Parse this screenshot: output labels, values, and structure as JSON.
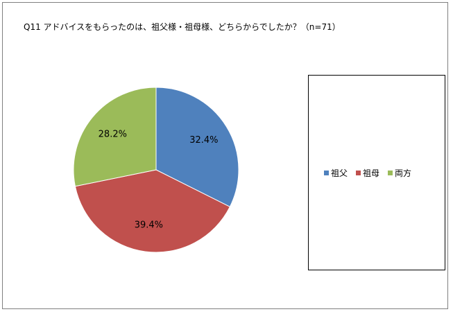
{
  "chart_data": {
    "type": "pie",
    "title": "Q11 アドバイスをもらったのは、祖父様・祖母様、どちらからでしたか？（n=71）",
    "categories": [
      "祖父",
      "祖母",
      "両方"
    ],
    "values": [
      32.4,
      39.4,
      28.2
    ],
    "data_labels": [
      "32.4%",
      "39.4%",
      "28.2%"
    ],
    "colors": [
      "#4f81bd",
      "#c0504d",
      "#9bbb59"
    ],
    "legend_position": "right"
  }
}
